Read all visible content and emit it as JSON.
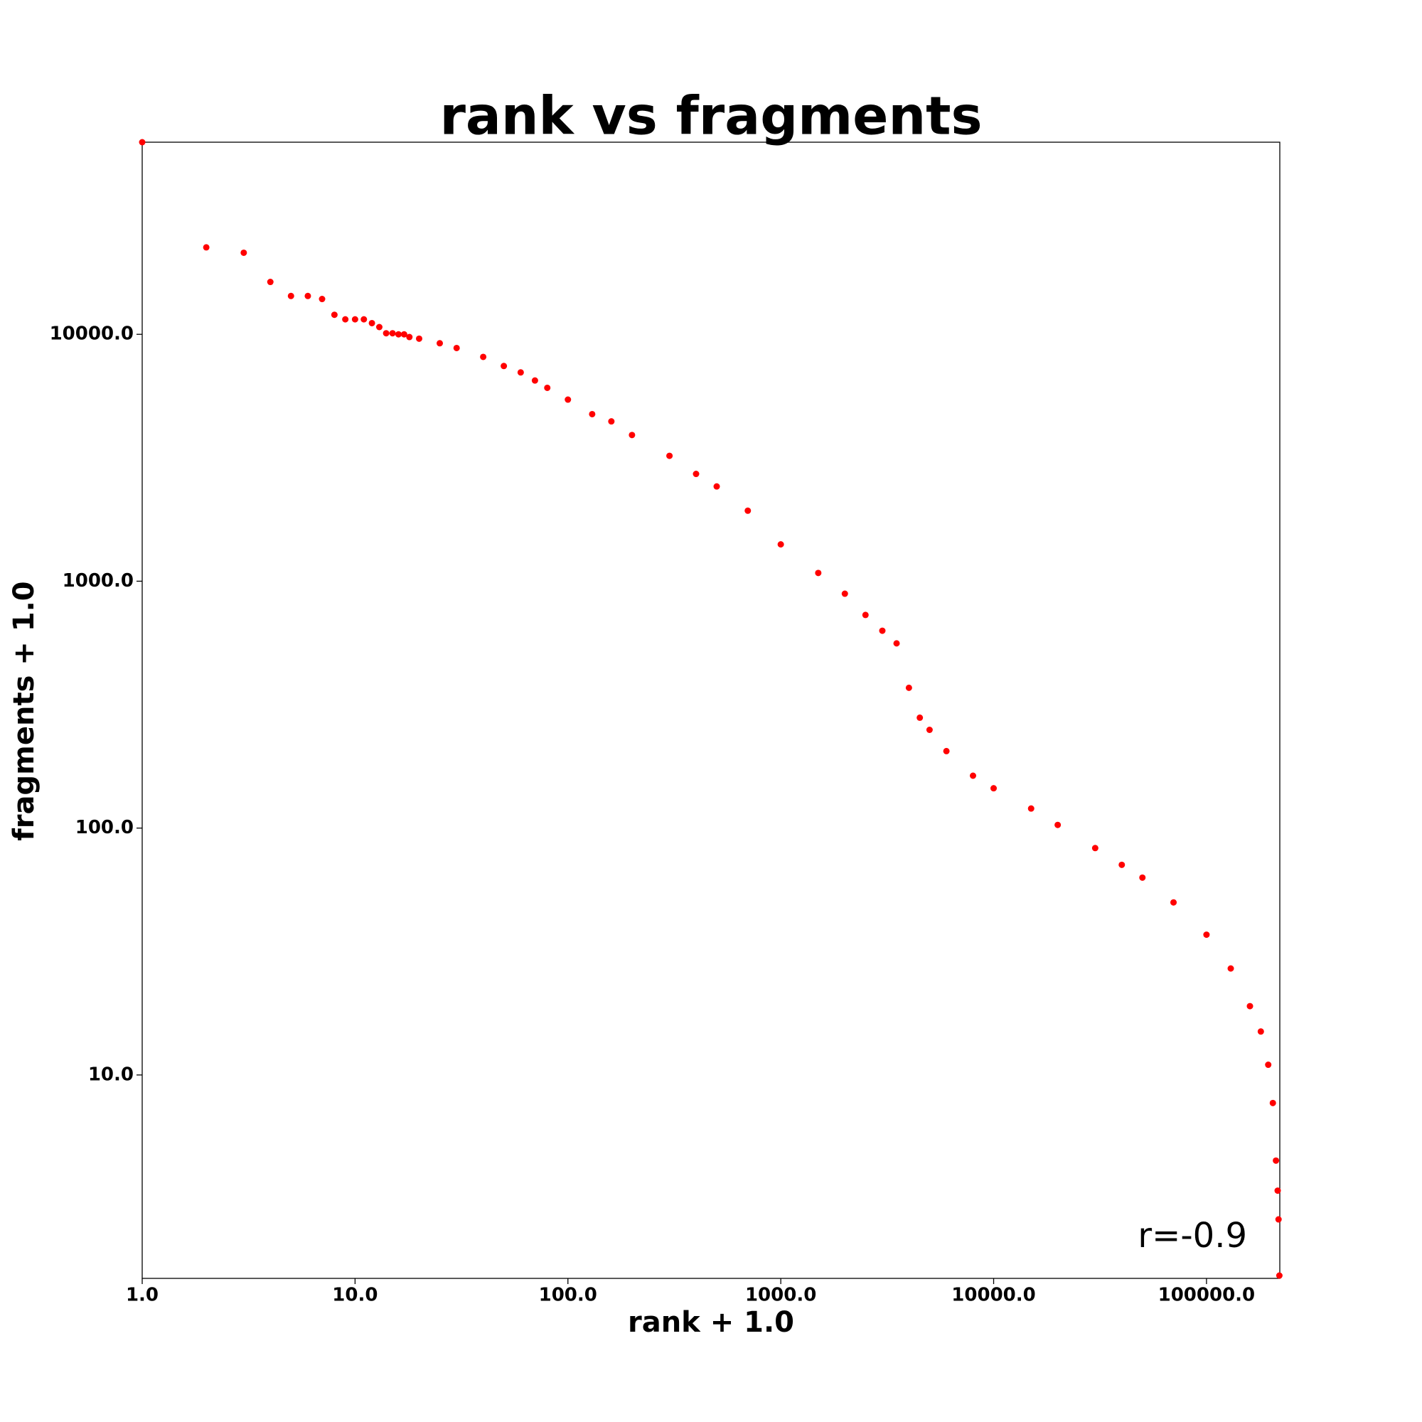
{
  "chart_data": {
    "type": "scatter",
    "title": "rank vs fragments",
    "xlabel": "rank + 1.0",
    "ylabel": "fragments + 1.0",
    "annotation": "r=-0.9",
    "xscale": "log",
    "yscale": "log",
    "grid": false,
    "xlim": [
      1,
      221000
    ],
    "ylim": [
      1.5,
      60000
    ],
    "xticks": [
      {
        "value": 1,
        "label": "1.0"
      },
      {
        "value": 10,
        "label": "10.0"
      },
      {
        "value": 100,
        "label": "100.0"
      },
      {
        "value": 1000,
        "label": "1000.0"
      },
      {
        "value": 10000,
        "label": "10000.0"
      },
      {
        "value": 100000,
        "label": "100000.0"
      }
    ],
    "yticks": [
      {
        "value": 10,
        "label": "10.0"
      },
      {
        "value": 100,
        "label": "100.0"
      },
      {
        "value": 1000,
        "label": "1000.0"
      },
      {
        "value": 10000,
        "label": "10000.0"
      }
    ],
    "series": [
      {
        "color": "#ff0000",
        "x": [
          1,
          2,
          3,
          4,
          5,
          6,
          7,
          8,
          9,
          10,
          11,
          12,
          13,
          14,
          15,
          16,
          17,
          18,
          20,
          25,
          30,
          40,
          50,
          60,
          70,
          80,
          100,
          130,
          160,
          200,
          300,
          400,
          500,
          700,
          1000,
          1500,
          2000,
          2500,
          3000,
          3500,
          4000,
          4500,
          5000,
          6000,
          8000,
          10000,
          15000,
          20000,
          30000,
          40000,
          50000,
          70000,
          100000,
          130000,
          160000,
          180000,
          195000,
          205000,
          212000,
          216000,
          218000,
          220000
        ],
        "values": [
          60000,
          22500,
          21400,
          16300,
          14300,
          14300,
          13900,
          12000,
          11500,
          11500,
          11500,
          11100,
          10700,
          10100,
          10100,
          10000,
          10000,
          9750,
          9600,
          9200,
          8800,
          8100,
          7440,
          7010,
          6500,
          6070,
          5440,
          4750,
          4440,
          3910,
          3220,
          2720,
          2420,
          1930,
          1410,
          1080,
          890,
          730,
          630,
          560,
          370,
          280,
          250,
          205,
          163,
          145,
          120,
          103,
          83,
          71,
          63,
          50,
          37,
          27,
          19,
          15,
          11,
          7.7,
          4.5,
          3.4,
          2.6,
          1.54
        ]
      }
    ]
  }
}
